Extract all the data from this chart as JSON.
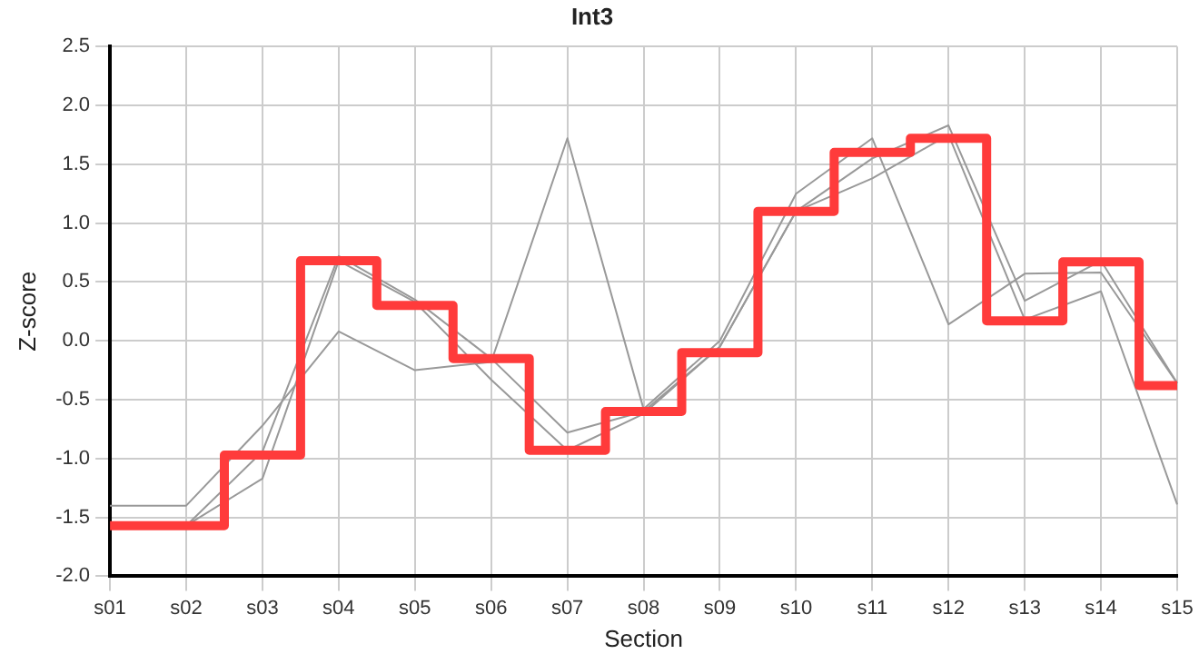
{
  "chart_data": {
    "type": "line",
    "title": "Int3",
    "xlabel": "Section",
    "ylabel": "Z-score",
    "categories": [
      "s01",
      "s02",
      "s03",
      "s04",
      "s05",
      "s06",
      "s07",
      "s08",
      "s09",
      "s10",
      "s11",
      "s12",
      "s13",
      "s14",
      "s15"
    ],
    "series": [
      {
        "color": "#999999",
        "values": [
          -1.4,
          -1.4,
          -0.72,
          0.08,
          -0.25,
          -0.18,
          1.72,
          -0.58,
          0.0,
          1.25,
          1.72,
          0.14,
          0.57,
          0.58,
          -0.36
        ]
      },
      {
        "color": "#999999",
        "values": [
          null,
          -1.57,
          -0.94,
          0.72,
          0.35,
          -0.15,
          -0.78,
          -0.6,
          -0.05,
          1.1,
          1.55,
          1.83,
          0.34,
          0.68,
          -0.36
        ]
      },
      {
        "color": "#999999",
        "values": [
          null,
          -1.57,
          -1.17,
          0.68,
          0.33,
          -0.33,
          -0.93,
          -0.62,
          -0.05,
          1.1,
          1.38,
          1.75,
          0.18,
          0.42,
          -1.39
        ]
      },
      {
        "type": "step",
        "color": "#ff3b3b",
        "values": [
          -1.57,
          -1.57,
          -0.97,
          0.68,
          0.3,
          -0.15,
          -0.93,
          -0.6,
          -0.1,
          1.1,
          1.6,
          1.72,
          0.17,
          0.67,
          -0.38
        ]
      }
    ],
    "ylim": [
      -2,
      2.5
    ],
    "yticks": [
      {
        "value": -2,
        "label": "-2.0"
      },
      {
        "value": -1.5,
        "label": "-1.5"
      },
      {
        "value": -1,
        "label": "-1.0"
      },
      {
        "value": -0.5,
        "label": "-0.5"
      },
      {
        "value": 0,
        "label": "0.0"
      },
      {
        "value": 0.5,
        "label": "0.5"
      },
      {
        "value": 1,
        "label": "1.0"
      },
      {
        "value": 1.5,
        "label": "1.5"
      },
      {
        "value": 2,
        "label": "2.0"
      },
      {
        "value": 2.5,
        "label": "2.5"
      }
    ],
    "grid": true,
    "legend": false,
    "marker": "none",
    "line_style": "solid"
  }
}
